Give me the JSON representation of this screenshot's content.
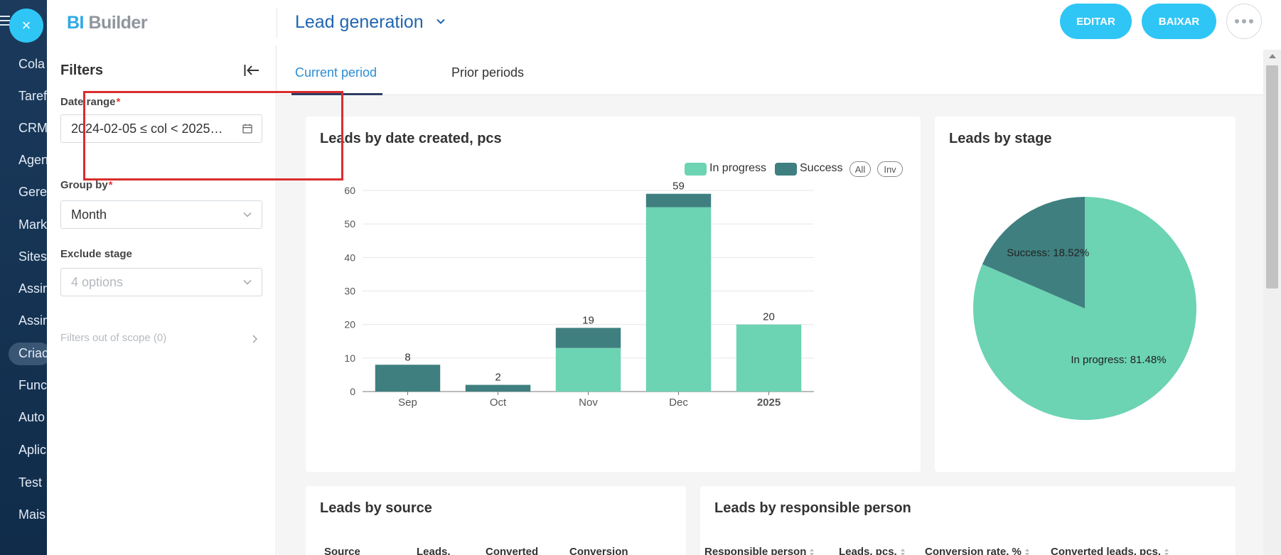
{
  "background_app": {
    "rail_items": [
      "Cola",
      "Taref",
      "CRM",
      "Agen",
      "Gere",
      "Mark",
      "Sites",
      "Assin",
      "Assin",
      "Criac",
      "Func",
      "Auto",
      "Aplic",
      "Test",
      "Mais"
    ],
    "selected_item": "Criac"
  },
  "close_button": {
    "label": "×"
  },
  "header": {
    "logo_bi": "BI",
    "logo_builder": " Builder",
    "dashboard_title": "Lead generation",
    "edit_label": "EDITAR",
    "download_label": "BAIXAR"
  },
  "filters": {
    "title": "Filters",
    "date_range": {
      "label": "Date range",
      "required": "*",
      "value": "2024-02-05 ≤ col < 2025…"
    },
    "group_by": {
      "label": "Group by",
      "required": "*",
      "value": "Month"
    },
    "exclude_stage": {
      "label": "Exclude stage",
      "placeholder": "4 options"
    },
    "out_of_scope": "Filters out of scope (0)"
  },
  "tabs": [
    {
      "label": "Current period",
      "active": true
    },
    {
      "label": "Prior periods",
      "active": false
    }
  ],
  "cards": {
    "bar_title": "Leads by date created, pcs",
    "pie_title": "Leads by stage",
    "source_title": "Leads by source",
    "resp_title": "Leads by responsible person",
    "source_headers": [
      "Source",
      "Leads,",
      "Converted",
      "Conversion"
    ],
    "resp_headers": [
      "Responsible person",
      "Leads, pcs.",
      "Conversion rate, %",
      "Converted leads, pcs."
    ]
  },
  "legend_controls": {
    "all": "All",
    "inv": "Inv"
  },
  "colors": {
    "in_progress": "#6cd3b3",
    "success": "#3f7f7f",
    "accent": "#2fc6f6",
    "highlight": "#d92d2d"
  },
  "chart_data": [
    {
      "type": "bar",
      "stacked": true,
      "title": "Leads by date created, pcs",
      "categories": [
        "Sep",
        "Oct",
        "Nov",
        "Dec",
        "2025"
      ],
      "series": [
        {
          "name": "In progress",
          "values": [
            0,
            0,
            13,
            55,
            20
          ],
          "color": "#6cd3b3"
        },
        {
          "name": "Success",
          "values": [
            8,
            2,
            6,
            4,
            0
          ],
          "color": "#3f7f7f"
        }
      ],
      "totals": [
        8,
        2,
        19,
        59,
        20
      ],
      "yticks": [
        0,
        10,
        20,
        30,
        40,
        50,
        60
      ],
      "ylim": [
        0,
        60
      ],
      "grid": true,
      "legend": "top-right"
    },
    {
      "type": "pie",
      "title": "Leads by stage",
      "labels": [
        "In progress",
        "Success"
      ],
      "values": [
        81.48,
        18.52
      ],
      "slice_labels": [
        "In progress: 81.48%",
        "Success: 18.52%"
      ],
      "colors": [
        "#6cd3b3",
        "#3f7f7f"
      ]
    }
  ]
}
